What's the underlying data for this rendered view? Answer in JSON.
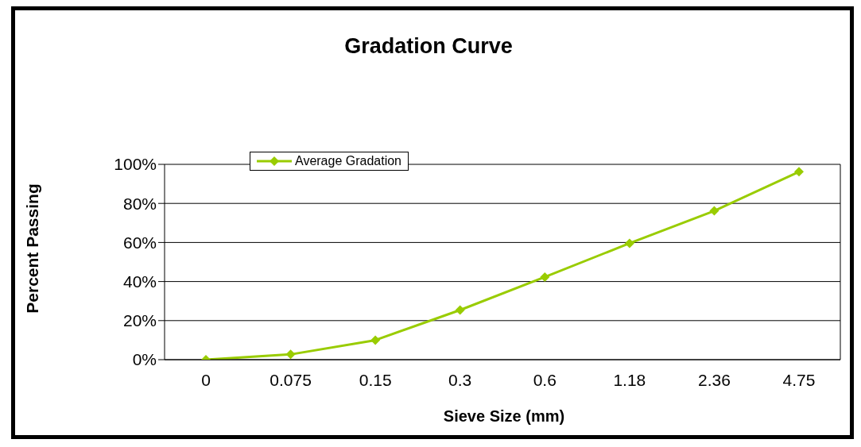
{
  "chart_data": {
    "type": "line",
    "title": "Gradation Curve",
    "xlabel": "Sieve Size (mm)",
    "ylabel": "Percent Passing",
    "categories": [
      "0",
      "0.075",
      "0.15",
      "0.3",
      "0.6",
      "1.18",
      "2.36",
      "4.75"
    ],
    "series": [
      {
        "name": "Average Gradation",
        "color": "#99cc00",
        "values": [
          0,
          2.7,
          10,
          25.4,
          42.3,
          59.6,
          76.2,
          96.2
        ]
      }
    ],
    "ylim": [
      0,
      100
    ],
    "yticks": [
      {
        "value": 0,
        "label": "0%"
      },
      {
        "value": 20,
        "label": "20%"
      },
      {
        "value": 40,
        "label": "40%"
      },
      {
        "value": 60,
        "label": "60%"
      },
      {
        "value": 80,
        "label": "80%"
      },
      {
        "value": 100,
        "label": "100%"
      }
    ],
    "grid": "y",
    "legend": "top left",
    "marker": "diamond",
    "line_style": "solid"
  }
}
